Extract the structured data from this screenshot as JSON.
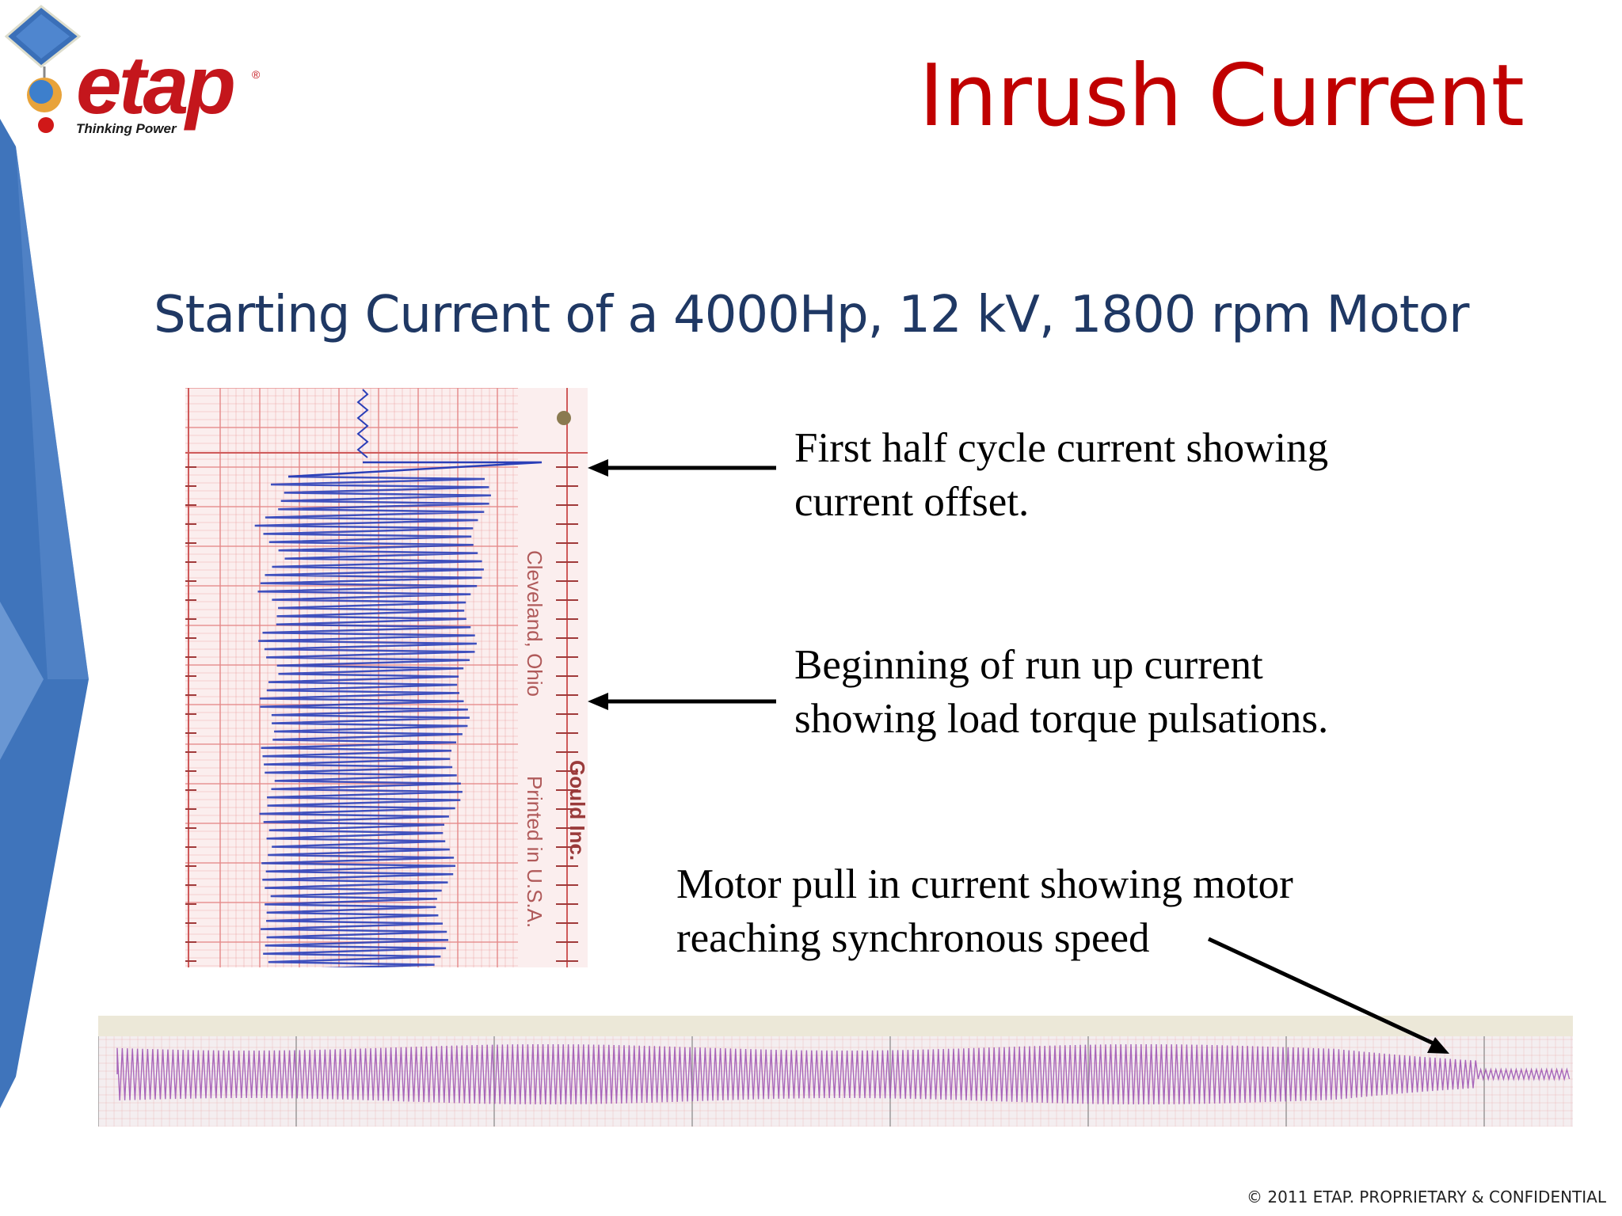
{
  "slide": {
    "title": "Inrush Current",
    "subtitle": "Starting Current of a 4000Hp, 12 kV, 1800 rpm Motor",
    "footer": "© 2011 ETAP. PROPRIETARY & CONFIDENTIAL"
  },
  "logo": {
    "word": "etap",
    "registered": "®",
    "tagline": "Thinking Power"
  },
  "photo_vertical": {
    "text_city": "Cleveland, Ohio",
    "text_printed": "Printed in U.S.A.",
    "text_brand": "Gould Inc."
  },
  "annotations": {
    "first": [
      "First half cycle current showing",
      "current offset."
    ],
    "second": [
      "Beginning of run up current",
      "showing load torque pulsations."
    ],
    "third": [
      "Motor pull in current showing motor",
      "reaching synchronous speed"
    ]
  },
  "colors": {
    "title": "#c00000",
    "subtitle": "#1f3864",
    "trace_blue": "#2b3fb8",
    "trace_purple": "#9a4fb0",
    "grid": "#e58a8a",
    "paper": "#fbeeee",
    "logo_red": "#c4161c",
    "side_blue": "#3f74bb"
  }
}
